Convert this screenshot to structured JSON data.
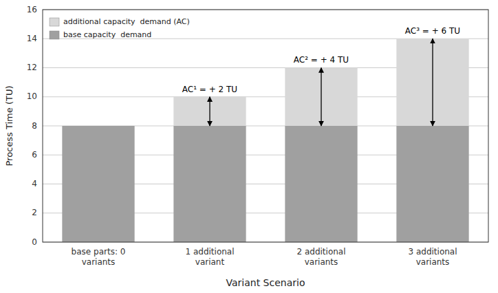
{
  "chart_data": {
    "type": "bar",
    "stacked": true,
    "categories": [
      "base parts: 0\nvariants",
      "1 additional\nvariant",
      "2 additional\nvariants",
      "3 additional\nvariants"
    ],
    "series": [
      {
        "name": "base capacity  demand",
        "color": "#a0a0a0",
        "values": [
          8,
          8,
          8,
          8
        ]
      },
      {
        "name": "additional capacity  demand (AC)",
        "color": "#d8d8d8",
        "values": [
          0,
          2,
          4,
          6
        ]
      }
    ],
    "ylim": [
      0,
      16
    ],
    "yticks": [
      0,
      2,
      4,
      6,
      8,
      10,
      12,
      14,
      16
    ],
    "ylabel": "Process Time (TU)",
    "xlabel": "Variant Scenario",
    "grid": true,
    "legend": "upper left",
    "annotations": [
      {
        "text": "AC¹ = + 2 TU",
        "category": "1 additional\nvariant",
        "y_text": 10.2,
        "y_arrow_top": 10.0,
        "y_arrow_bottom": 8.0
      },
      {
        "text": "AC² = + 4 TU",
        "category": "2 additional\nvariants",
        "y_text": 12.2,
        "y_arrow_top": 12.0,
        "y_arrow_bottom": 8.0
      },
      {
        "text": "AC³ = + 6 TU",
        "category": "3 additional\nvariants",
        "y_text": 14.2,
        "y_arrow_top": 14.0,
        "y_arrow_bottom": 8.0
      }
    ]
  }
}
